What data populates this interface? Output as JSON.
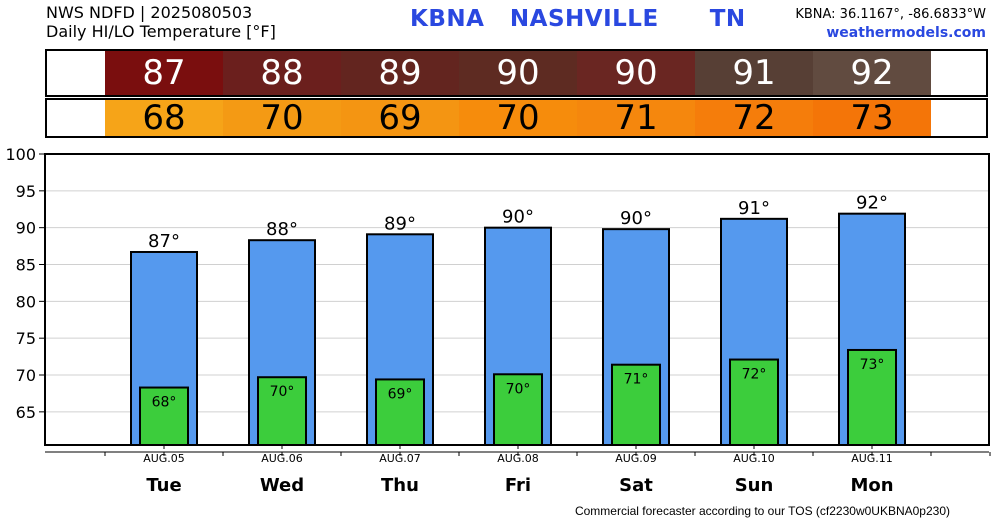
{
  "header": {
    "line1": "NWS NDFD | 2025080503",
    "line2": "Daily HI/LO Temperature [°F]",
    "station": "KBNA   NASHVILLE      TN",
    "coords": "KBNA: 36.1167°, -86.6833°W",
    "site": "weathermodels.com"
  },
  "strip": {
    "hi_values": [
      "87",
      "88",
      "89",
      "90",
      "90",
      "91",
      "92"
    ],
    "hi_colors": [
      "#7a0e0e",
      "#6b1f1d",
      "#63251f",
      "#5e2b22",
      "#6a2622",
      "#573f35",
      "#614b40"
    ],
    "lo_values": [
      "68",
      "70",
      "69",
      "70",
      "71",
      "72",
      "73"
    ],
    "lo_colors": [
      "#f6a418",
      "#f49a14",
      "#f49512",
      "#f68c0c",
      "#f5870d",
      "#f57d0b",
      "#f47508"
    ]
  },
  "chart_data": {
    "type": "bar",
    "categories": [
      "Tue",
      "Wed",
      "Thu",
      "Fri",
      "Sat",
      "Sun",
      "Mon"
    ],
    "dates": [
      "AUG.05",
      "AUG.06",
      "AUG.07",
      "AUG.08",
      "AUG.09",
      "AUG.10",
      "AUG.11"
    ],
    "series": [
      {
        "values": [
          86.7,
          88.3,
          89.1,
          90.0,
          89.8,
          91.2,
          91.9
        ],
        "labels": [
          "87°",
          "88°",
          "89°",
          "90°",
          "90°",
          "91°",
          "92°"
        ],
        "color": "#5599ee"
      },
      {
        "values": [
          68.3,
          69.7,
          69.4,
          70.1,
          71.4,
          72.1,
          73.4
        ],
        "labels": [
          "68°",
          "70°",
          "69°",
          "70°",
          "71°",
          "72°",
          "73°"
        ],
        "color": "#3ccd3c"
      }
    ],
    "yticks": [
      65,
      70,
      75,
      80,
      85,
      90,
      95,
      100
    ],
    "ylim": [
      60.5,
      100
    ],
    "grid": "horizontal"
  },
  "footer": "Commercial forecaster according to our TOS (cf2230w0UKBNA0p230)"
}
